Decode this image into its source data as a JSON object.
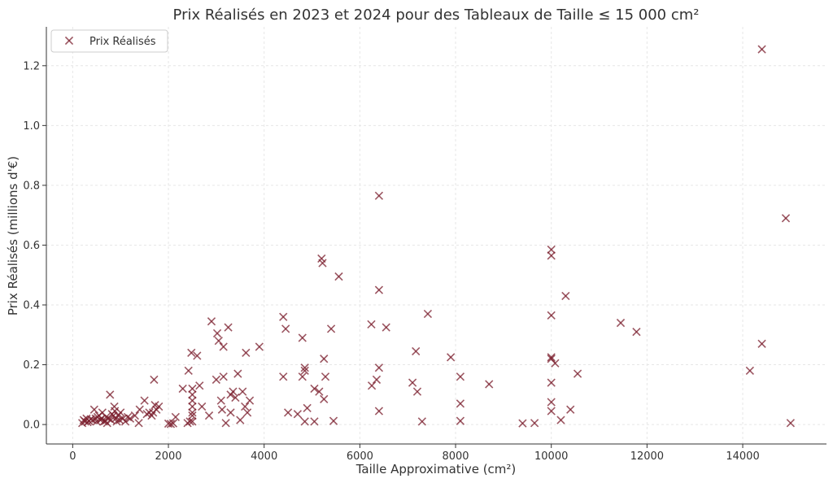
{
  "chart_data": {
    "type": "scatter",
    "title": "Prix Réalisés en 2023 et 2024 pour des Tableaux de Taille ≤ 15 000 cm²",
    "xlabel": "Taille Approximative (cm²)",
    "ylabel": "Prix Réalisés (millions d'€)",
    "xlim": [
      -550,
      15750
    ],
    "ylim": [
      -0.065,
      1.33
    ],
    "xticks": [
      0,
      2000,
      4000,
      6000,
      8000,
      10000,
      12000,
      14000
    ],
    "yticks": [
      0.0,
      0.2,
      0.4,
      0.6,
      0.8,
      1.0,
      1.2
    ],
    "xtick_labels": [
      "0",
      "2000",
      "4000",
      "6000",
      "8000",
      "10000",
      "12000",
      "14000"
    ],
    "ytick_labels": [
      "0.0",
      "0.2",
      "0.4",
      "0.6",
      "0.8",
      "1.0",
      "1.2"
    ],
    "grid": true,
    "legend": "top-left",
    "marker": "x",
    "color": "#7b1f2e",
    "series": [
      {
        "name": "Prix Réalisés",
        "points": [
          [
            200,
            0.005
          ],
          [
            230,
            0.015
          ],
          [
            260,
            0.01
          ],
          [
            290,
            0.02
          ],
          [
            310,
            0.008
          ],
          [
            340,
            0.012
          ],
          [
            380,
            0.018
          ],
          [
            420,
            0.015
          ],
          [
            450,
            0.05
          ],
          [
            480,
            0.02
          ],
          [
            500,
            0.01
          ],
          [
            520,
            0.025
          ],
          [
            550,
            0.03
          ],
          [
            580,
            0.015
          ],
          [
            600,
            0.02
          ],
          [
            620,
            0.04
          ],
          [
            650,
            0.01
          ],
          [
            680,
            0.012
          ],
          [
            700,
            0.025
          ],
          [
            720,
            0.005
          ],
          [
            750,
            0.02
          ],
          [
            780,
            0.1
          ],
          [
            800,
            0.015
          ],
          [
            820,
            0.035
          ],
          [
            850,
            0.03
          ],
          [
            870,
            0.06
          ],
          [
            880,
            0.045
          ],
          [
            900,
            0.02
          ],
          [
            920,
            0.01
          ],
          [
            950,
            0.03
          ],
          [
            980,
            0.015
          ],
          [
            1000,
            0.04
          ],
          [
            1050,
            0.02
          ],
          [
            1100,
            0.01
          ],
          [
            1150,
            0.025
          ],
          [
            1200,
            0.02
          ],
          [
            1300,
            0.03
          ],
          [
            1380,
            0.005
          ],
          [
            1400,
            0.05
          ],
          [
            1500,
            0.08
          ],
          [
            1550,
            0.035
          ],
          [
            1600,
            0.04
          ],
          [
            1650,
            0.03
          ],
          [
            1700,
            0.15
          ],
          [
            1750,
            0.05
          ],
          [
            1800,
            0.06
          ],
          [
            1720,
            0.065
          ],
          [
            1680,
            0.04
          ],
          [
            2000,
            0.003
          ],
          [
            2050,
            0.002
          ],
          [
            2100,
            0.004
          ],
          [
            2150,
            0.025
          ],
          [
            2300,
            0.12
          ],
          [
            2400,
            0.005
          ],
          [
            2420,
            0.18
          ],
          [
            2450,
            0.01
          ],
          [
            2480,
            0.24
          ],
          [
            2500,
            0.12
          ],
          [
            2500,
            0.1
          ],
          [
            2500,
            0.08
          ],
          [
            2500,
            0.06
          ],
          [
            2500,
            0.04
          ],
          [
            2500,
            0.03
          ],
          [
            2500,
            0.01
          ],
          [
            2600,
            0.23
          ],
          [
            2650,
            0.13
          ],
          [
            2700,
            0.06
          ],
          [
            2850,
            0.03
          ],
          [
            2900,
            0.345
          ],
          [
            3000,
            0.15
          ],
          [
            3020,
            0.305
          ],
          [
            3050,
            0.28
          ],
          [
            3100,
            0.08
          ],
          [
            3120,
            0.05
          ],
          [
            3150,
            0.26
          ],
          [
            3150,
            0.16
          ],
          [
            3200,
            0.005
          ],
          [
            3250,
            0.325
          ],
          [
            3300,
            0.1
          ],
          [
            3300,
            0.04
          ],
          [
            3350,
            0.11
          ],
          [
            3400,
            0.09
          ],
          [
            3450,
            0.17
          ],
          [
            3500,
            0.015
          ],
          [
            3550,
            0.11
          ],
          [
            3600,
            0.06
          ],
          [
            3620,
            0.24
          ],
          [
            3650,
            0.04
          ],
          [
            3700,
            0.08
          ],
          [
            3900,
            0.26
          ],
          [
            4400,
            0.36
          ],
          [
            4400,
            0.16
          ],
          [
            4450,
            0.32
          ],
          [
            4500,
            0.04
          ],
          [
            4700,
            0.035
          ],
          [
            4800,
            0.29
          ],
          [
            4800,
            0.16
          ],
          [
            4850,
            0.19
          ],
          [
            4850,
            0.18
          ],
          [
            4850,
            0.01
          ],
          [
            4900,
            0.055
          ],
          [
            5050,
            0.12
          ],
          [
            5050,
            0.01
          ],
          [
            5150,
            0.11
          ],
          [
            5200,
            0.555
          ],
          [
            5220,
            0.54
          ],
          [
            5250,
            0.085
          ],
          [
            5250,
            0.22
          ],
          [
            5280,
            0.16
          ],
          [
            5400,
            0.32
          ],
          [
            5450,
            0.012
          ],
          [
            5560,
            0.495
          ],
          [
            6240,
            0.335
          ],
          [
            6250,
            0.13
          ],
          [
            6350,
            0.15
          ],
          [
            6400,
            0.765
          ],
          [
            6400,
            0.45
          ],
          [
            6400,
            0.19
          ],
          [
            6400,
            0.045
          ],
          [
            6550,
            0.325
          ],
          [
            7100,
            0.14
          ],
          [
            7170,
            0.245
          ],
          [
            7200,
            0.11
          ],
          [
            7300,
            0.01
          ],
          [
            7420,
            0.37
          ],
          [
            7900,
            0.225
          ],
          [
            8100,
            0.16
          ],
          [
            8100,
            0.07
          ],
          [
            8100,
            0.012
          ],
          [
            8700,
            0.135
          ],
          [
            9400,
            0.004
          ],
          [
            9650,
            0.005
          ],
          [
            10000,
            0.585
          ],
          [
            10000,
            0.565
          ],
          [
            10000,
            0.365
          ],
          [
            10000,
            0.225
          ],
          [
            10000,
            0.22
          ],
          [
            10000,
            0.14
          ],
          [
            10000,
            0.075
          ],
          [
            10000,
            0.045
          ],
          [
            10080,
            0.205
          ],
          [
            10200,
            0.015
          ],
          [
            10300,
            0.43
          ],
          [
            10400,
            0.05
          ],
          [
            10550,
            0.17
          ],
          [
            11450,
            0.34
          ],
          [
            11780,
            0.31
          ],
          [
            14150,
            0.18
          ],
          [
            14400,
            1.255
          ],
          [
            14400,
            0.27
          ],
          [
            14900,
            0.69
          ],
          [
            15000,
            0.005
          ]
        ]
      }
    ]
  }
}
